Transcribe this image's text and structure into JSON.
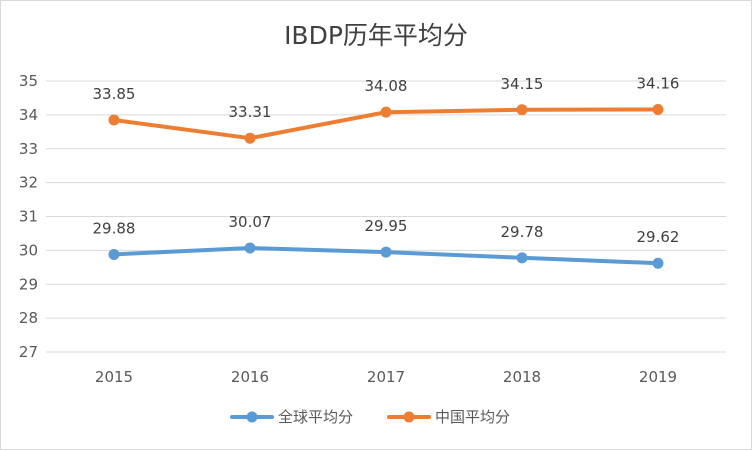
{
  "chart_data": {
    "type": "line",
    "title": "IBDP历年平均分",
    "categories": [
      "2015",
      "2016",
      "2017",
      "2018",
      "2019"
    ],
    "ylim": [
      27,
      35
    ],
    "yticks": [
      27,
      28,
      29,
      30,
      31,
      32,
      33,
      34,
      35
    ],
    "grid": true,
    "legend_position": "bottom",
    "series": [
      {
        "name": "全球平均分",
        "values": [
          29.88,
          30.07,
          29.95,
          29.78,
          29.62
        ],
        "labels": [
          "29.88",
          "30.07",
          "29.95",
          "29.78",
          "29.62"
        ],
        "color": "#5b9bd5"
      },
      {
        "name": "中国平均分",
        "values": [
          33.85,
          33.31,
          34.08,
          34.15,
          34.16
        ],
        "labels": [
          "33.85",
          "33.31",
          "34.08",
          "34.15",
          "34.16"
        ],
        "color": "#ed7d31"
      }
    ]
  }
}
